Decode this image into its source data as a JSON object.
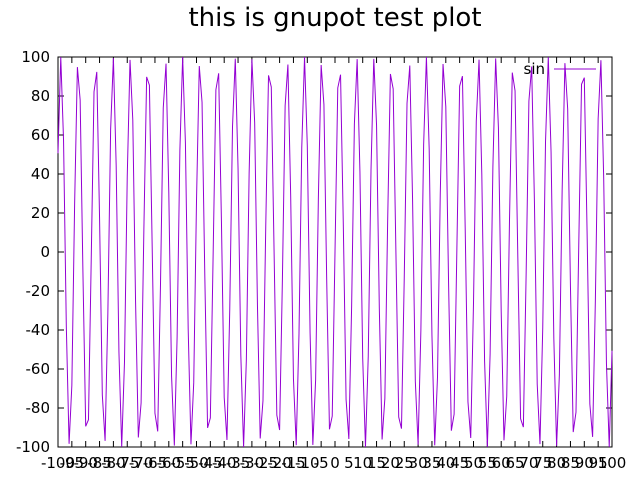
{
  "chart_data": {
    "type": "line",
    "title": "this is gnupot test plot",
    "xlabel": "",
    "ylabel": "",
    "xlim": [
      -100,
      100
    ],
    "ylim": [
      -100,
      100
    ],
    "grid": false,
    "legend": {
      "placement": "top-right",
      "entries": [
        "sin"
      ]
    },
    "x_ticks": [
      -100,
      -95,
      -90,
      -85,
      -80,
      -75,
      -70,
      -65,
      -60,
      -55,
      -50,
      -45,
      -40,
      -35,
      -30,
      -25,
      -20,
      -15,
      -10,
      -5,
      0,
      5,
      10,
      15,
      20,
      25,
      30,
      35,
      40,
      45,
      50,
      55,
      60,
      65,
      70,
      75,
      80,
      85,
      90,
      95,
      100
    ],
    "x_tick_labels": [
      "-100",
      "-95",
      "-90",
      "-85",
      "-80",
      "-75",
      "-70",
      "-65",
      "-60",
      "-55",
      "-50",
      "-45",
      "-40",
      "-35",
      "-30",
      "-25",
      "-20",
      "-15",
      "-10",
      "-5",
      "0",
      "5",
      "10",
      "15",
      "20",
      "25",
      "30",
      "35",
      "40",
      "45",
      "50",
      "55",
      "60",
      "65",
      "70",
      "75",
      "80",
      "85",
      "90",
      "95",
      "100"
    ],
    "y_ticks": [
      -100,
      -80,
      -60,
      -40,
      -20,
      0,
      20,
      40,
      60,
      80,
      100
    ],
    "y_tick_labels": [
      "-100",
      "-80",
      "-60",
      "-40",
      "-20",
      "0",
      "20",
      "40",
      "60",
      "80",
      "100"
    ],
    "series": [
      {
        "name": "sin",
        "color": "#9400d3",
        "function": "100*sin(x)",
        "x_step": 1
      }
    ]
  }
}
